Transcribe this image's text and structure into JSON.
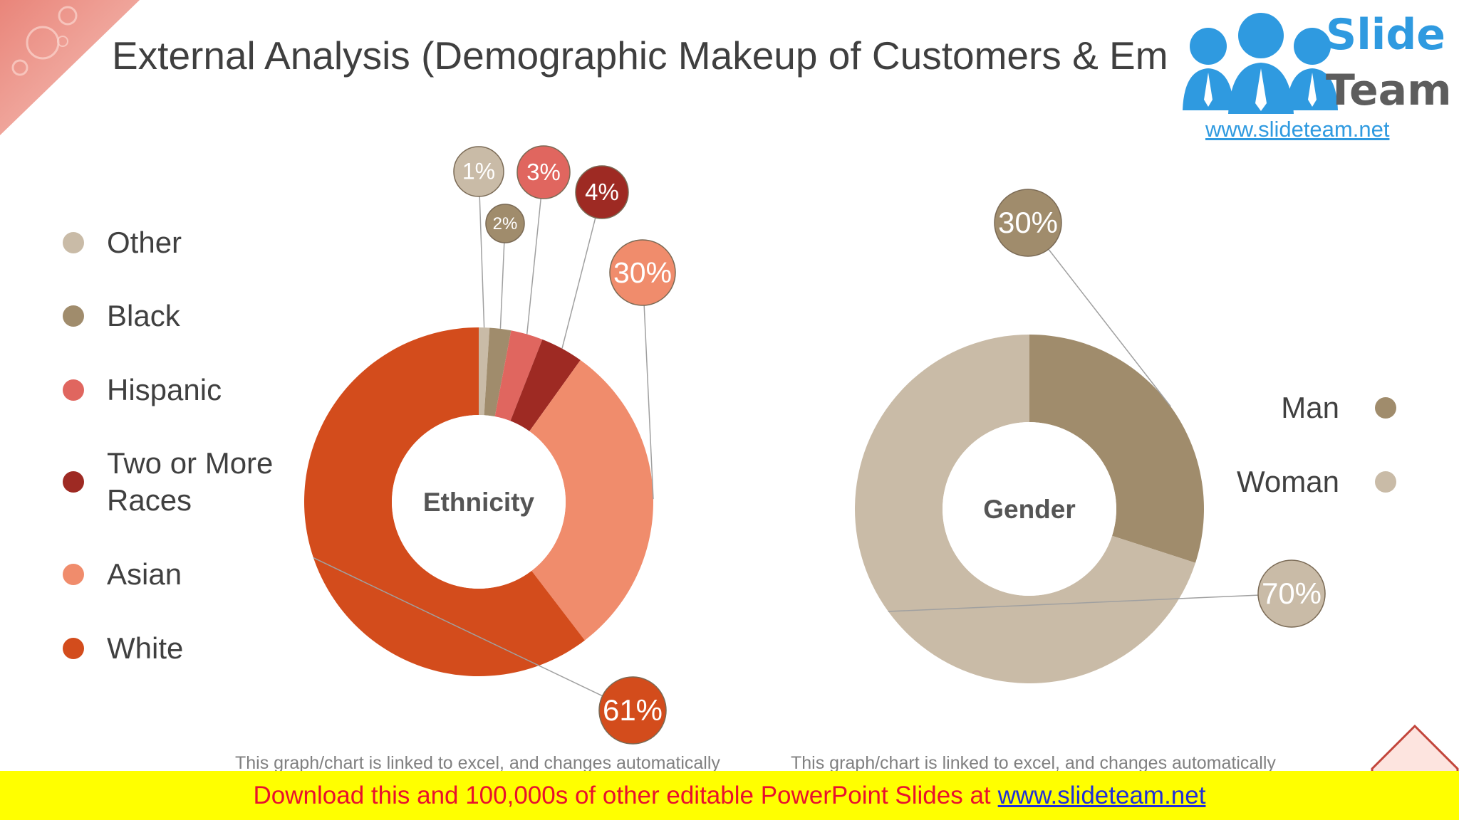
{
  "title": "External Analysis (Demographic Makeup of Customers & Employees)",
  "logo": {
    "word1": "Slide",
    "word2": "Team",
    "url": "www.slideteam.net"
  },
  "colors": {
    "other": "#c9bba7",
    "black": "#a08c6c",
    "hispanic": "#e0665f",
    "two_or_more": "#9e2a23",
    "asian": "#f08c6c",
    "white": "#d34c1c",
    "man": "#a08c6c",
    "woman": "#c9bba7",
    "accent": "#f0a090"
  },
  "legend_left": [
    {
      "label": "Other",
      "color": "#c9bba7"
    },
    {
      "label": "Black",
      "color": "#a08c6c"
    },
    {
      "label": "Hispanic",
      "color": "#e0665f"
    },
    {
      "label": "Two or More Races",
      "color": "#9e2a23"
    },
    {
      "label": "Asian",
      "color": "#f08c6c"
    },
    {
      "label": "White",
      "color": "#d34c1c"
    }
  ],
  "legend_right": [
    {
      "label": "Man",
      "color": "#a08c6c"
    },
    {
      "label": "Woman",
      "color": "#c9bba7"
    }
  ],
  "chart_data": [
    {
      "type": "pie",
      "title": "Ethnicity",
      "categories": [
        "Other",
        "Black",
        "Hispanic",
        "Two or More Races",
        "Asian",
        "White"
      ],
      "values": [
        1,
        2,
        3,
        4,
        30,
        61
      ],
      "labels": [
        "1%",
        "2%",
        "3%",
        "4%",
        "30%",
        "61%"
      ],
      "colors": [
        "#c9bba7",
        "#a08c6c",
        "#e0665f",
        "#9e2a23",
        "#f08c6c",
        "#d34c1c"
      ]
    },
    {
      "type": "pie",
      "title": "Gender",
      "categories": [
        "Man",
        "Woman"
      ],
      "values": [
        30,
        70
      ],
      "labels": [
        "30%",
        "70%"
      ],
      "colors": [
        "#a08c6c",
        "#c9bba7"
      ]
    }
  ],
  "notes": {
    "left": "This graph/chart is linked to excel, and changes automatically",
    "right": "This graph/chart is linked to excel, and changes automatically"
  },
  "footer": {
    "text": "Download this and 100,000s of other editable PowerPoint Slides at",
    "link": "www.slideteam.net"
  }
}
